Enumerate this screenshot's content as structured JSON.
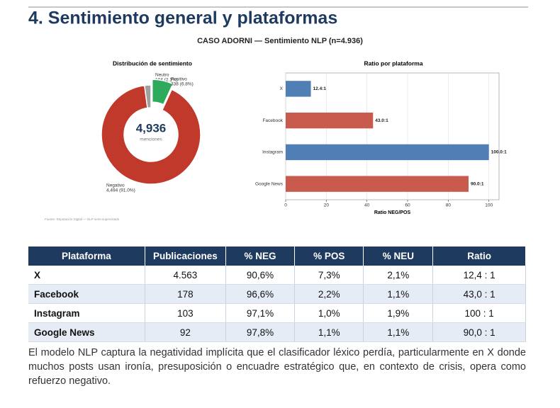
{
  "title": "4. Sentimiento general y plataformas",
  "figure_title": "CASO ADORNI — Sentimiento NLP (n=4.936)",
  "chart_data": [
    {
      "type": "pie",
      "title": "Distribución de sentimiento",
      "categories": [
        "Neutro",
        "Positivo",
        "Negativo"
      ],
      "values": [
        104,
        338,
        4494
      ],
      "value_labels": [
        "104 (2.1%)",
        "338 (6.8%)",
        "4,494 (91.0%)"
      ],
      "colors": [
        "#a0a0a0",
        "#2eaa5c",
        "#c0392b"
      ],
      "center_label": "4,936",
      "center_sublabel": "menciones",
      "source": "Fuente: Reputación Digital — NLP semi-supervisado"
    },
    {
      "type": "barh",
      "title": "Ratio por plataforma",
      "categories": [
        "X",
        "Facebook",
        "Instagram",
        "Google News"
      ],
      "values": [
        12.4,
        43.0,
        100.0,
        90.0
      ],
      "value_labels": [
        "12.4:1",
        "43.0:1",
        "100.0:1",
        "90.0:1"
      ],
      "colors": [
        "#4f7fb5",
        "#c85a4e",
        "#4f7fb5",
        "#c85a4e"
      ],
      "xlim": [
        0,
        105
      ],
      "xticks": [
        0,
        20,
        40,
        60,
        80,
        100
      ],
      "xlabel": "Ratio NEG/POS",
      "grid": true
    }
  ],
  "table": {
    "header": [
      "Plataforma",
      "Publicaciones",
      "% NEG",
      "% POS",
      "% NEU",
      "Ratio"
    ],
    "rows": [
      [
        "X",
        "4.563",
        "90,6%",
        "7,3%",
        "2,1%",
        "12,4 : 1"
      ],
      [
        "Facebook",
        "178",
        "96,6%",
        "2,2%",
        "1,1%",
        "43,0 : 1"
      ],
      [
        "Instagram",
        "103",
        "97,1%",
        "1,0%",
        "1,9%",
        "100 : 1"
      ],
      [
        "Google News",
        "92",
        "97,8%",
        "1,1%",
        "1,1%",
        "90,0 : 1"
      ]
    ]
  },
  "paragraph": "El modelo NLP captura la negatividad implícita que el clasificador léxico perdía, particularmente en X donde muchos posts usan ironía, presuposición o encuadre estratégico que, en contexto de crisis, opera como refuerzo negativo."
}
